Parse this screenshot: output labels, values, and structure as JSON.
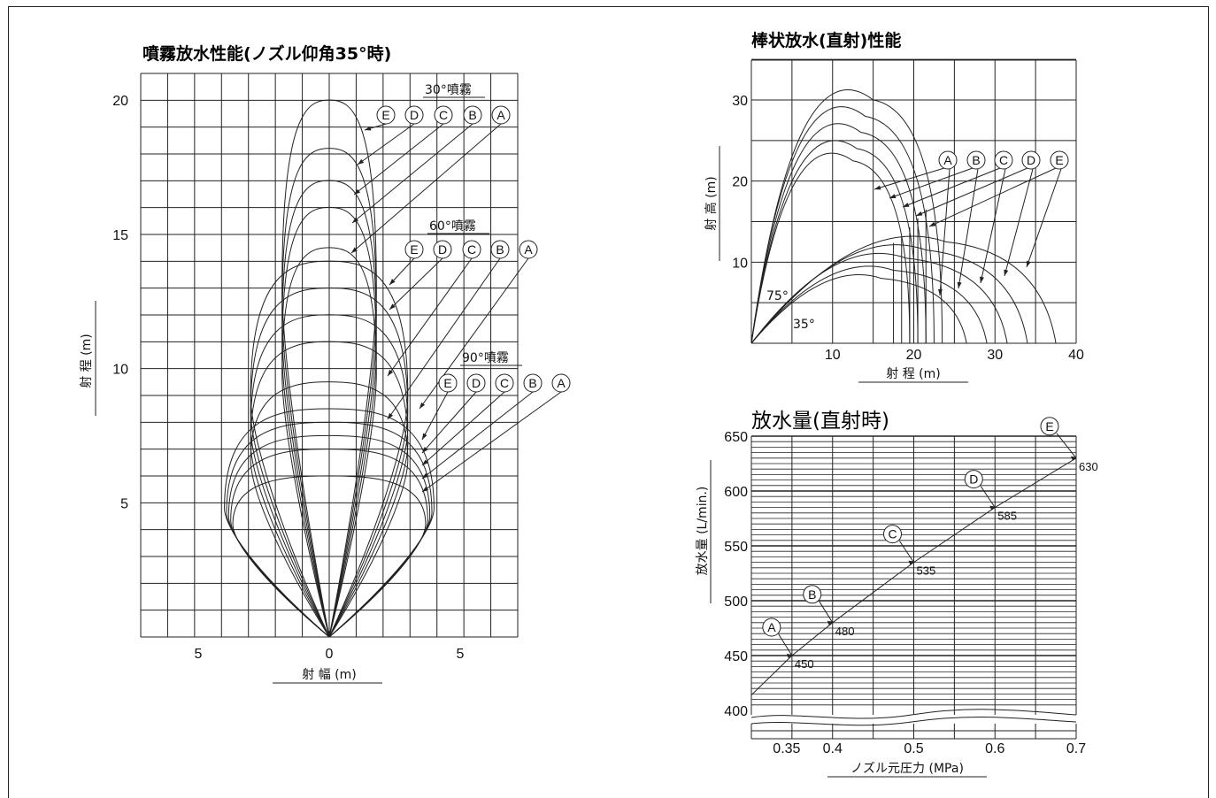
{
  "chart_data": [
    {
      "type": "line",
      "title": "噴霧放水性能(ノズル仰角35°時)",
      "xlabel": "射 幅 (m)",
      "ylabel": "射 程 (m)",
      "x_ticks": [
        "5",
        "0",
        "5"
      ],
      "y_ticks": [
        "20",
        "15",
        "10",
        "5"
      ],
      "xlim": [
        -7,
        7
      ],
      "ylim": [
        0,
        20
      ],
      "grid": true,
      "groups": [
        {
          "label": "30°噴霧",
          "width": [
            1.8,
            1.8,
            1.8,
            1.8,
            1.8
          ],
          "reach": [
            20,
            18.2,
            17,
            16,
            14.5
          ],
          "labels": [
            "E",
            "D",
            "C",
            "B",
            "A"
          ]
        },
        {
          "label": "60°噴霧",
          "width": [
            3.0,
            3.0,
            3.0,
            3.0,
            3.0
          ],
          "reach": [
            14,
            13,
            12,
            11,
            9.5
          ],
          "labels": [
            "E",
            "D",
            "C",
            "B",
            "A"
          ]
        },
        {
          "label": "90°噴霧",
          "width": [
            4.0,
            4.0,
            4.0,
            4.0,
            4.0
          ],
          "reach": [
            8.5,
            8,
            7.5,
            7,
            6
          ],
          "labels": [
            "E",
            "D",
            "C",
            "B",
            "A"
          ]
        }
      ]
    },
    {
      "type": "line",
      "title": "棒状放水(直射)性能",
      "xlabel": "射 程 (m)",
      "ylabel": "射 高 (m)",
      "x_ticks": [
        "10",
        "20",
        "30",
        "40"
      ],
      "y_ticks": [
        "30",
        "20",
        "10"
      ],
      "xlim": [
        0,
        40
      ],
      "ylim": [
        0,
        35
      ],
      "grid": true,
      "angle_labels": [
        "75°",
        "35°"
      ],
      "series_labels": [
        "A",
        "B",
        "C",
        "D",
        "E"
      ],
      "series_75": [
        {
          "name": "A",
          "peak": [
            12.5,
            22.5
          ],
          "range": 19.5
        },
        {
          "name": "B",
          "peak": [
            13,
            24
          ],
          "range": 20.5
        },
        {
          "name": "C",
          "peak": [
            13.5,
            26
          ],
          "range": 21.5
        },
        {
          "name": "D",
          "peak": [
            14,
            28
          ],
          "range": 22.5
        },
        {
          "name": "E",
          "peak": [
            15,
            30
          ],
          "range": 23.5
        }
      ],
      "series_35": [
        {
          "name": "A",
          "peak": [
            16,
            8
          ],
          "range": 26.5
        },
        {
          "name": "B",
          "peak": [
            17.5,
            9
          ],
          "range": 29
        },
        {
          "name": "C",
          "peak": [
            19,
            10.5
          ],
          "range": 31.5
        },
        {
          "name": "D",
          "peak": [
            21.5,
            11.5
          ],
          "range": 34
        },
        {
          "name": "E",
          "peak": [
            24,
            12.5
          ],
          "range": 37.5
        }
      ]
    },
    {
      "type": "line",
      "title": "放水量(直射時)",
      "xlabel": "ノズル元圧力 (MPa)",
      "ylabel": "放水量 (L/min.)",
      "x_ticks": [
        "0.35",
        "0.4",
        "0.5",
        "0.6",
        "0.7"
      ],
      "y_ticks": [
        "650",
        "600",
        "550",
        "500",
        "450",
        "400"
      ],
      "xlim": [
        0.3,
        0.7
      ],
      "ylim": [
        400,
        650
      ],
      "grid": true,
      "points": [
        {
          "name": "A",
          "x": 0.35,
          "y": 450,
          "value": "450"
        },
        {
          "name": "B",
          "x": 0.4,
          "y": 480,
          "value": "480"
        },
        {
          "name": "C",
          "x": 0.5,
          "y": 535,
          "value": "535"
        },
        {
          "name": "D",
          "x": 0.6,
          "y": 585,
          "value": "585"
        },
        {
          "name": "E",
          "x": 0.7,
          "y": 630,
          "value": "630"
        }
      ]
    }
  ]
}
